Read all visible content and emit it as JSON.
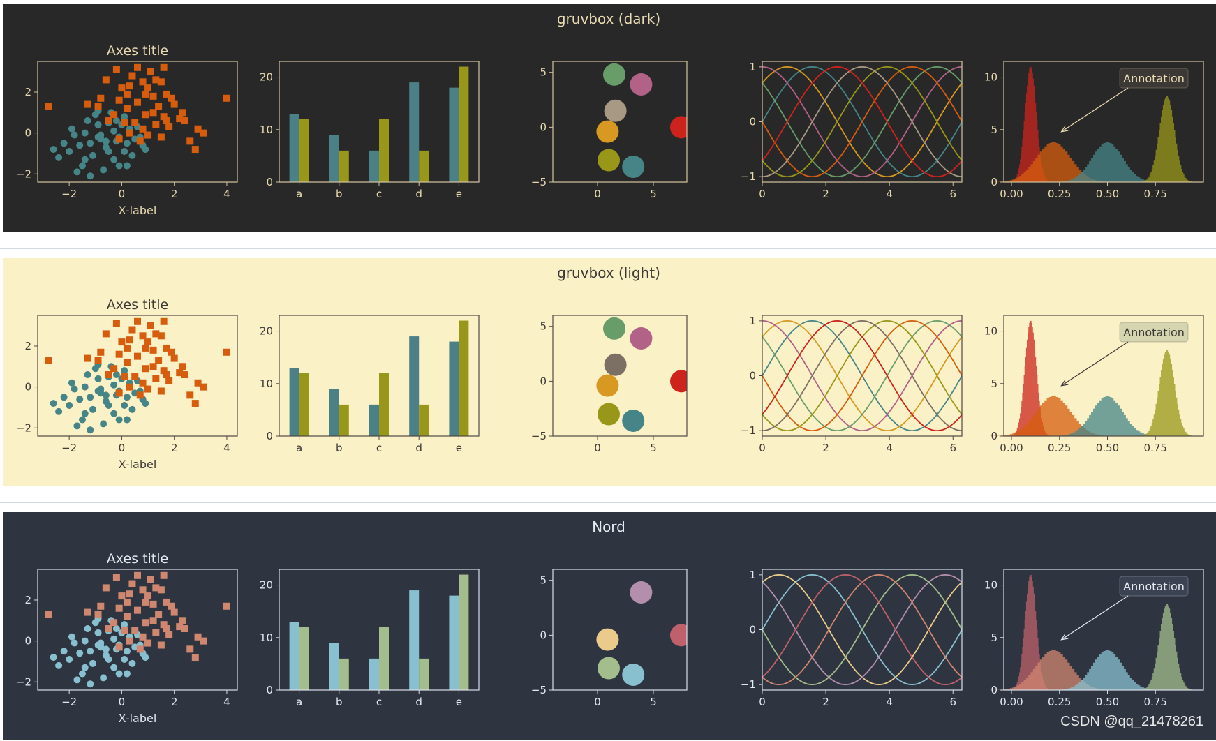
{
  "watermark": "CSDN @qq_21478261",
  "common": {
    "scatter": {
      "title": "Axes title",
      "xlabel": "X-label",
      "xticks": [
        -2,
        0,
        2,
        4
      ],
      "yticks": [
        -2,
        0,
        2
      ],
      "xlim": [
        -3.2,
        4.4
      ],
      "ylim": [
        -2.4,
        3.5
      ],
      "seriesA": [
        [
          -0.2,
          -0.4
        ],
        [
          -0.8,
          -0.1
        ],
        [
          0.3,
          0.2
        ],
        [
          -1.2,
          -0.5
        ],
        [
          -0.5,
          0.5
        ],
        [
          0.1,
          -0.9
        ],
        [
          -1.6,
          -0.6
        ],
        [
          -0.9,
          0.4
        ],
        [
          0.5,
          -0.3
        ],
        [
          -1.4,
          0.0
        ],
        [
          -0.3,
          -1.3
        ],
        [
          0.8,
          -0.6
        ],
        [
          -2.0,
          -0.9
        ],
        [
          -1.1,
          -1.1
        ],
        [
          -0.6,
          -0.7
        ],
        [
          0.0,
          0.4
        ],
        [
          -0.1,
          -0.2
        ],
        [
          -1.3,
          0.6
        ],
        [
          0.6,
          0.3
        ],
        [
          -0.7,
          -1.8
        ],
        [
          -1.5,
          -1.6
        ],
        [
          -2.6,
          -0.8
        ],
        [
          -2.2,
          -0.5
        ],
        [
          -0.4,
          1.0
        ],
        [
          -0.9,
          1.1
        ],
        [
          0.2,
          -1.6
        ],
        [
          -0.8,
          -0.3
        ],
        [
          0.9,
          -0.8
        ],
        [
          -1.7,
          -1.9
        ],
        [
          -1.0,
          0.9
        ],
        [
          -0.3,
          0.1
        ],
        [
          -0.5,
          -0.9
        ],
        [
          0.4,
          -1.1
        ],
        [
          -1.8,
          -0.1
        ],
        [
          0.1,
          0.8
        ],
        [
          -1.2,
          -2.1
        ],
        [
          -0.2,
          0.6
        ],
        [
          -0.6,
          -0.4
        ],
        [
          0.7,
          -0.2
        ],
        [
          -1.4,
          -1.3
        ],
        [
          -0.9,
          -0.2
        ],
        [
          0.2,
          -0.5
        ],
        [
          -1.9,
          0.2
        ],
        [
          -0.1,
          -1.6
        ],
        [
          -2.4,
          -1.2
        ]
      ],
      "seriesB": [
        [
          0.5,
          0.5
        ],
        [
          1.2,
          1.0
        ],
        [
          -0.1,
          1.6
        ],
        [
          0.8,
          2.5
        ],
        [
          1.6,
          0.8
        ],
        [
          0.3,
          0.0
        ],
        [
          2.0,
          1.4
        ],
        [
          -0.6,
          2.6
        ],
        [
          0.9,
          1.9
        ],
        [
          1.5,
          -0.2
        ],
        [
          -0.2,
          3.1
        ],
        [
          1.1,
          3.0
        ],
        [
          1.7,
          1.9
        ],
        [
          2.4,
          0.6
        ],
        [
          0.2,
          1.2
        ],
        [
          0.7,
          -0.4
        ],
        [
          2.9,
          0.2
        ],
        [
          1.3,
          0.4
        ],
        [
          -0.3,
          0.9
        ],
        [
          0.6,
          1.5
        ],
        [
          1.8,
          0.3
        ],
        [
          2.2,
          0.7
        ],
        [
          -0.9,
          1.3
        ],
        [
          0.0,
          2.2
        ],
        [
          1.0,
          2.2
        ],
        [
          1.4,
          1.3
        ],
        [
          0.4,
          2.8
        ],
        [
          -0.5,
          0.6
        ],
        [
          2.6,
          -0.4
        ],
        [
          3.1,
          0.0
        ],
        [
          0.9,
          0.9
        ],
        [
          1.9,
          1.7
        ],
        [
          -1.3,
          1.4
        ],
        [
          0.3,
          2.3
        ],
        [
          1.6,
          3.2
        ],
        [
          -2.8,
          1.3
        ],
        [
          4.0,
          1.7
        ],
        [
          2.8,
          -0.8
        ],
        [
          0.8,
          0.2
        ],
        [
          1.2,
          1.8
        ],
        [
          0.1,
          0.5
        ],
        [
          -0.1,
          -0.3
        ],
        [
          1.5,
          2.5
        ],
        [
          2.3,
          1.0
        ],
        [
          0.6,
          3.2
        ],
        [
          1.0,
          -0.1
        ],
        [
          -0.8,
          1.7
        ],
        [
          1.3,
          2.6
        ],
        [
          0.2,
          1.9
        ],
        [
          1.7,
          0.6
        ]
      ]
    },
    "bar": {
      "categories": [
        "a",
        "b",
        "c",
        "d",
        "e"
      ],
      "series": [
        {
          "values": [
            13,
            9,
            6,
            19,
            18
          ]
        },
        {
          "values": [
            12,
            6,
            12,
            6,
            22
          ]
        }
      ],
      "ylim": [
        0,
        23
      ],
      "yticks": [
        0,
        10,
        20
      ]
    },
    "circles": {
      "xticks": [
        0,
        5
      ],
      "yticks": [
        -5,
        0,
        5
      ],
      "xlim": [
        -4,
        8
      ],
      "ylim": [
        -5,
        6
      ]
    },
    "lines": {
      "xticks": [
        0,
        2,
        4,
        6
      ],
      "yticks": [
        -1,
        0,
        1
      ],
      "xlim": [
        0,
        6.28
      ],
      "ylim": [
        -1.1,
        1.1
      ]
    },
    "hist": {
      "xticks": [
        "0.00",
        "0.25",
        "0.50",
        "0.75"
      ],
      "xtick_values": [
        0,
        0.25,
        0.5,
        0.75
      ],
      "yticks": [
        0,
        5,
        10
      ],
      "xlim": [
        -0.04,
        1.0
      ],
      "ylim": [
        0,
        11.5
      ],
      "annotation": "Annotation",
      "peaks": [
        {
          "mu": 0.1,
          "sigma": 0.03,
          "height": 11.0
        },
        {
          "mu": 0.22,
          "sigma": 0.09,
          "height": 3.8
        },
        {
          "mu": 0.5,
          "sigma": 0.08,
          "height": 3.8
        },
        {
          "mu": 0.81,
          "sigma": 0.04,
          "height": 8.2
        }
      ]
    }
  },
  "themes": [
    {
      "title": "gruvbox (dark)",
      "bg": "#282828",
      "fg": "#ebdbb2",
      "axis": "#d5c4a1",
      "scatterA": "#458588",
      "scatterB": "#d65d0e",
      "barA": "#4a8086",
      "barB": "#98971a",
      "circles": [
        {
          "x": 1.5,
          "y": 4.8,
          "c": "#689d6a"
        },
        {
          "x": 3.9,
          "y": 3.9,
          "c": "#b16286"
        },
        {
          "x": 1.6,
          "y": 1.5,
          "c": "#a89984"
        },
        {
          "x": 0.9,
          "y": -0.4,
          "c": "#d79921"
        },
        {
          "x": 7.5,
          "y": 0.0,
          "c": "#cc241d"
        },
        {
          "x": 1.0,
          "y": -3.0,
          "c": "#98971a"
        },
        {
          "x": 3.2,
          "y": -3.6,
          "c": "#458588"
        }
      ],
      "lineColors": [
        "#458588",
        "#d79921",
        "#b16286",
        "#689d6a",
        "#d65d0e",
        "#98971a",
        "#a89984",
        "#cc241d"
      ],
      "histColors": [
        "#cc241d",
        "#d65d0e",
        "#458588",
        "#98971a"
      ],
      "annBg": "#3c3836",
      "annFg": "#ebdbb2",
      "arrow": "#ebdbb2"
    },
    {
      "title": "gruvbox (light)",
      "bg": "#fbf1c7",
      "fg": "#3c3836",
      "axis": "#504945",
      "scatterA": "#458588",
      "scatterB": "#d65d0e",
      "barA": "#4a8086",
      "barB": "#98971a",
      "circles": [
        {
          "x": 1.5,
          "y": 4.8,
          "c": "#689d6a"
        },
        {
          "x": 3.9,
          "y": 3.9,
          "c": "#b16286"
        },
        {
          "x": 1.6,
          "y": 1.5,
          "c": "#7c6f64"
        },
        {
          "x": 0.9,
          "y": -0.4,
          "c": "#d79921"
        },
        {
          "x": 7.5,
          "y": 0.0,
          "c": "#cc241d"
        },
        {
          "x": 1.0,
          "y": -3.0,
          "c": "#98971a"
        },
        {
          "x": 3.2,
          "y": -3.6,
          "c": "#458588"
        }
      ],
      "lineColors": [
        "#458588",
        "#d79921",
        "#b16286",
        "#689d6a",
        "#d65d0e",
        "#98971a",
        "#7c6f64",
        "#cc241d"
      ],
      "histColors": [
        "#cc241d",
        "#d65d0e",
        "#458588",
        "#98971a"
      ],
      "annBg": "#d5d5b0",
      "annFg": "#3c3836",
      "arrow": "#3c3836"
    },
    {
      "title": "Nord",
      "bg": "#2e3440",
      "fg": "#e5e9f0",
      "axis": "#d8dee9",
      "scatterA": "#88c0d0",
      "scatterB": "#d08770",
      "barA": "#88c0d0",
      "barB": "#a3be8c",
      "circles": [
        {
          "x": 3.9,
          "y": 3.9,
          "c": "#b48ead"
        },
        {
          "x": 0.9,
          "y": -0.4,
          "c": "#ebcb8b"
        },
        {
          "x": 7.5,
          "y": 0.0,
          "c": "#bf616a"
        },
        {
          "x": 1.0,
          "y": -3.0,
          "c": "#a3be8c"
        },
        {
          "x": 3.2,
          "y": -3.6,
          "c": "#88c0d0"
        }
      ],
      "lineColors": [
        "#88c0d0",
        "#ebcb8b",
        "#b48ead",
        "#a3be8c",
        "#d08770",
        "#bf616a"
      ],
      "histColors": [
        "#bf616a",
        "#d08770",
        "#88c0d0",
        "#a3be8c"
      ],
      "annBg": "#3b4252",
      "annFg": "#e5e9f0",
      "arrow": "#e5e9f0"
    }
  ]
}
